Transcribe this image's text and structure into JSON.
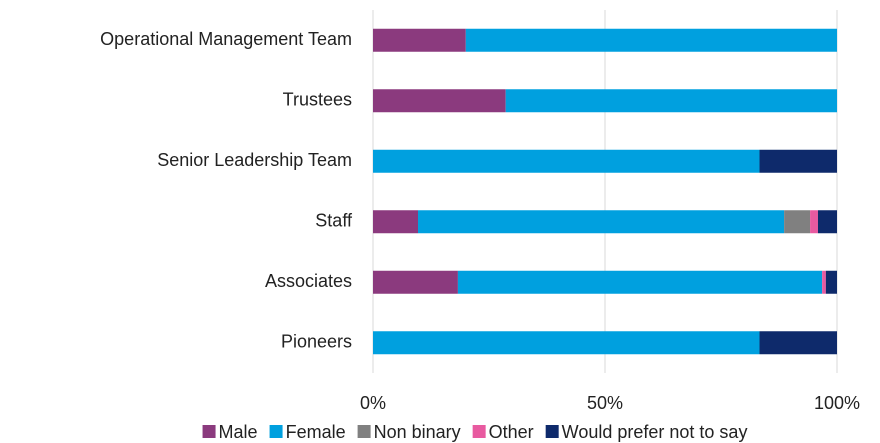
{
  "chart_data": {
    "type": "stacked_barh",
    "categories": [
      "Operational Management Team",
      "Trustees",
      "Senior Leadership Team",
      "Staff",
      "Associates",
      "Pioneers"
    ],
    "series": [
      {
        "name": "Male",
        "color": "#8b3a7e",
        "values": [
          20,
          28.6,
          0,
          9.7,
          18.3,
          0
        ]
      },
      {
        "name": "Female",
        "color": "#00a0df",
        "values": [
          80,
          71.4,
          83.3,
          78.9,
          78.5,
          83.3
        ]
      },
      {
        "name": "Non binary",
        "color": "#808080",
        "values": [
          0,
          0,
          0,
          5.6,
          0,
          0
        ]
      },
      {
        "name": "Other",
        "color": "#e85aa0",
        "values": [
          0,
          0,
          0,
          1.7,
          0.8,
          0
        ]
      },
      {
        "name": "Would prefer not to say",
        "color": "#0e2a6b",
        "values": [
          0,
          0,
          16.7,
          4.1,
          2.4,
          16.7
        ]
      }
    ],
    "xlim": [
      0,
      100
    ],
    "xticks": [
      {
        "value": 0,
        "label": "0%"
      },
      {
        "value": 50,
        "label": "50%"
      },
      {
        "value": 100,
        "label": "100%"
      }
    ],
    "grid": true,
    "legend": "bottom"
  }
}
